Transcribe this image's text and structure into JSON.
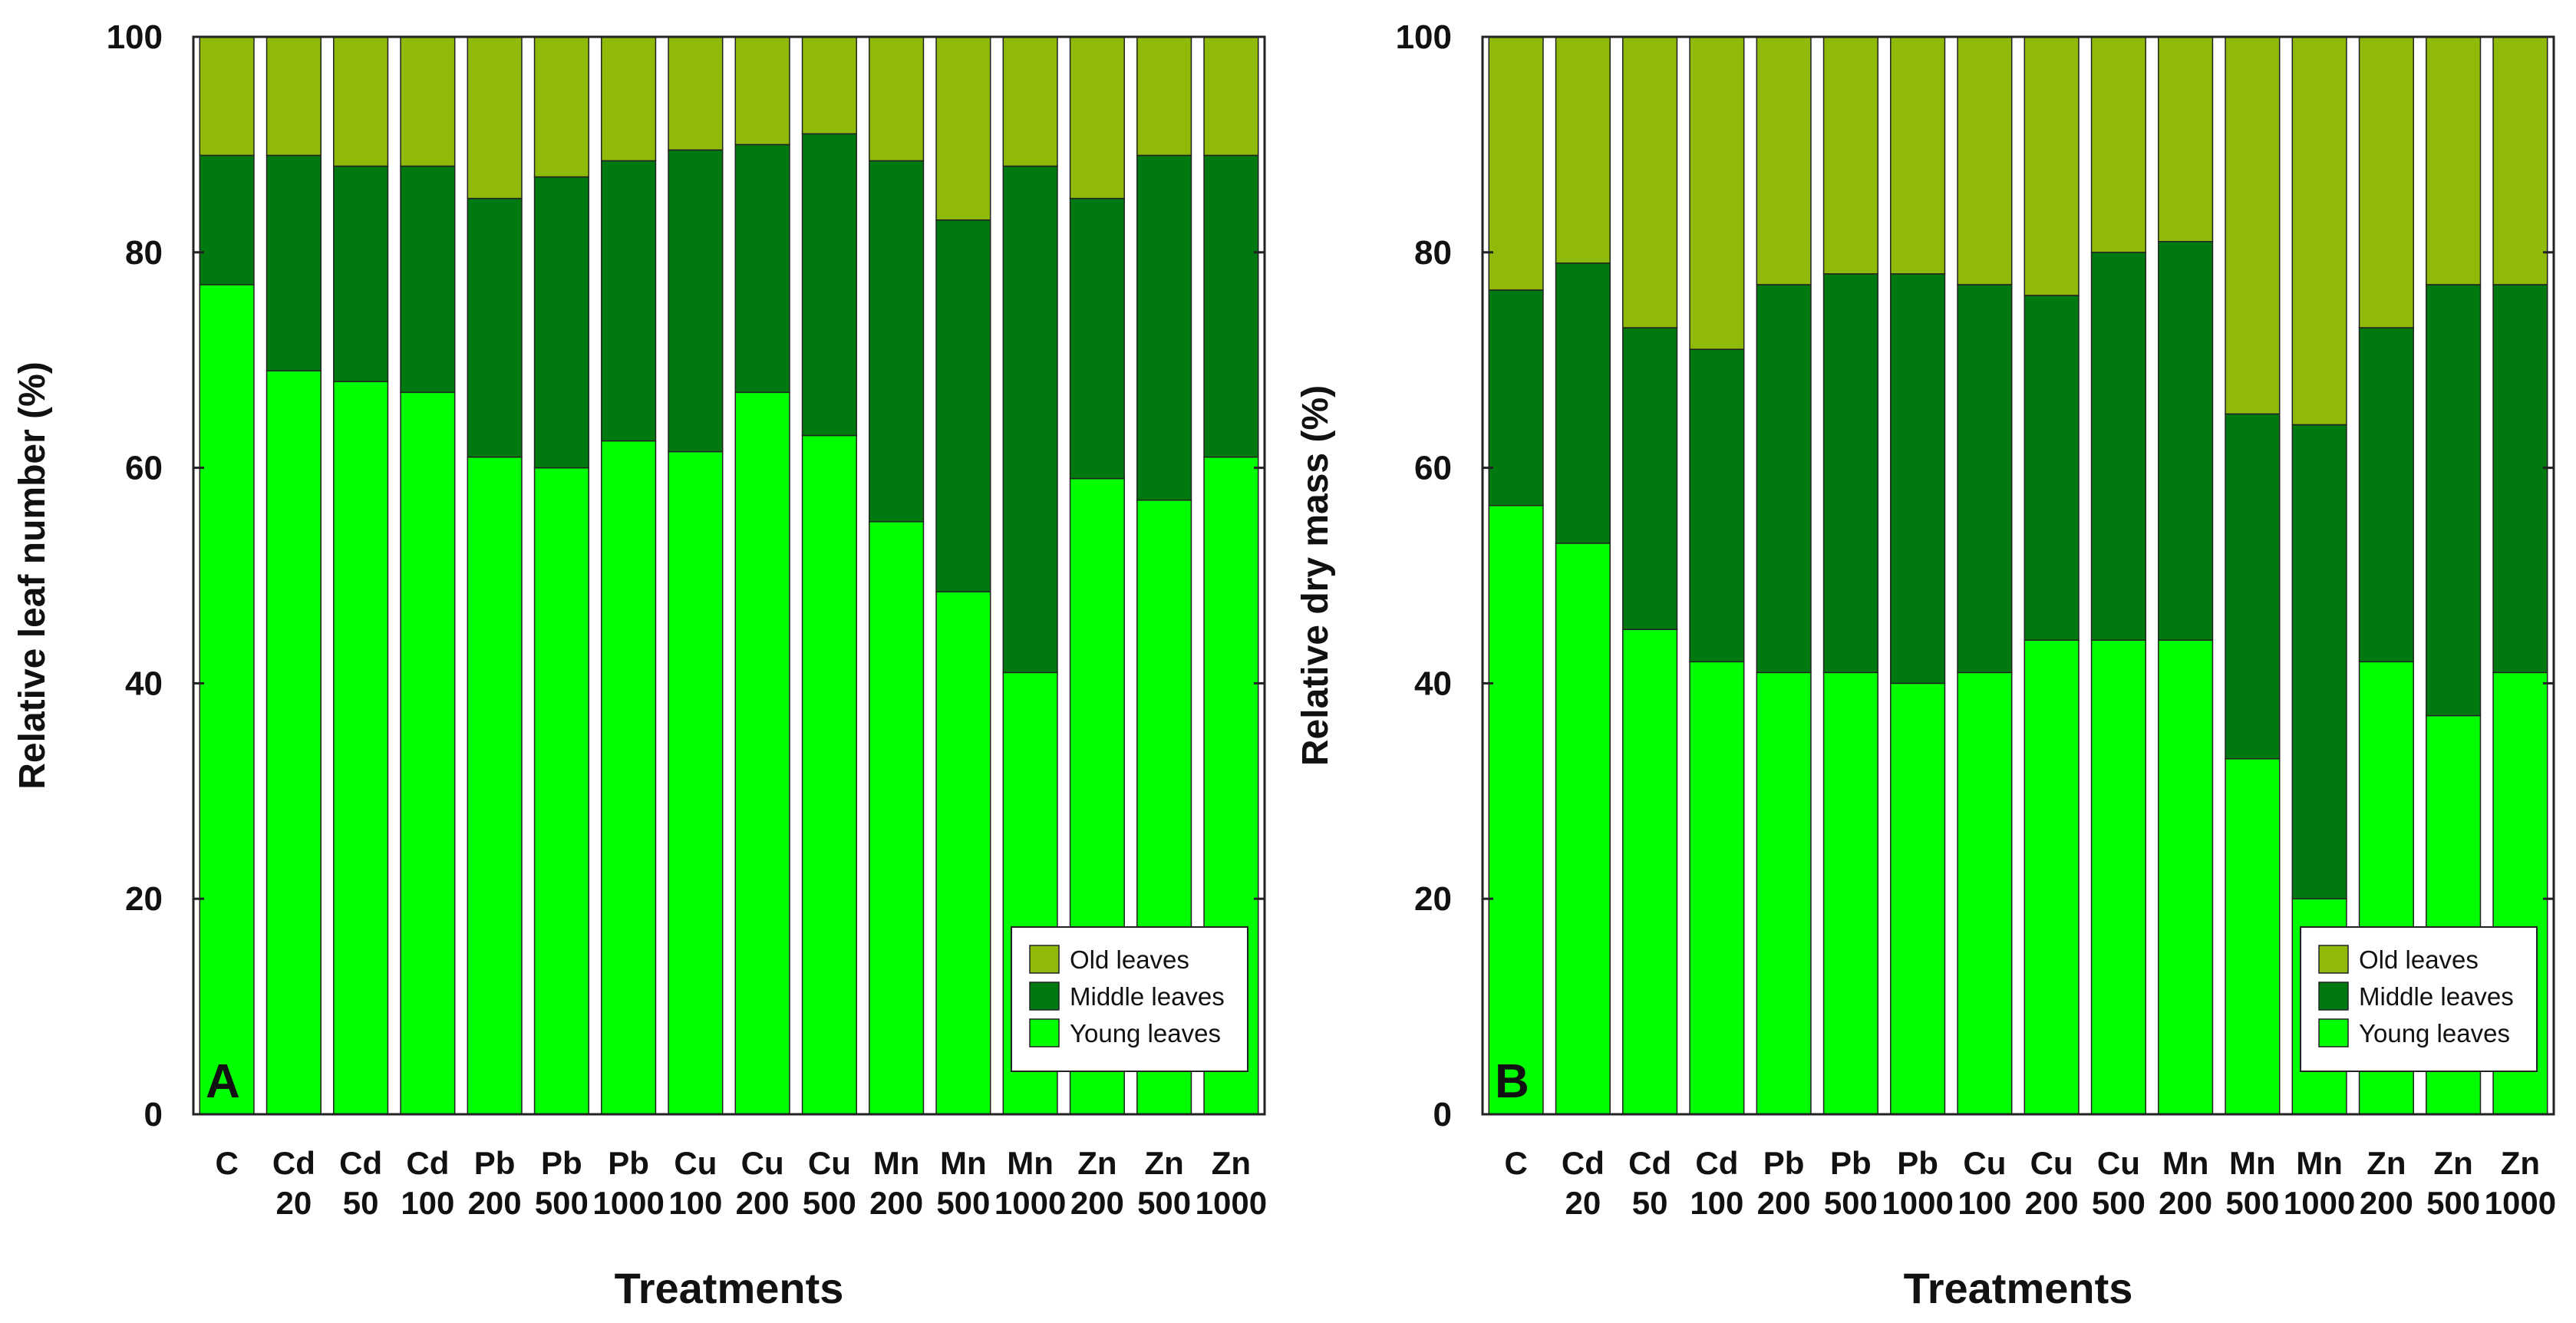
{
  "chart_data": [
    {
      "type": "bar",
      "stacked": true,
      "panel_label": "A",
      "title": "",
      "xlabel": "Treatments",
      "ylabel": "Relative leaf number (%)",
      "ylim": [
        0,
        100
      ],
      "yticks": [
        0,
        20,
        40,
        60,
        80,
        100
      ],
      "grid": false,
      "legend_position": "bottom-right",
      "categories": [
        [
          "C",
          ""
        ],
        [
          "Cd",
          "20"
        ],
        [
          "Cd",
          "50"
        ],
        [
          "Cd",
          "100"
        ],
        [
          "Pb",
          "200"
        ],
        [
          "Pb",
          "500"
        ],
        [
          "Pb",
          "1000"
        ],
        [
          "Cu",
          "100"
        ],
        [
          "Cu",
          "200"
        ],
        [
          "Cu",
          "500"
        ],
        [
          "Mn",
          "200"
        ],
        [
          "Mn",
          "500"
        ],
        [
          "Mn",
          "1000"
        ],
        [
          "Zn",
          "200"
        ],
        [
          "Zn",
          "500"
        ],
        [
          "Zn",
          "1000"
        ]
      ],
      "series": [
        {
          "name": "Young leaves",
          "color": "#00ff00",
          "values": [
            77,
            69,
            68,
            67,
            61,
            60,
            62.5,
            61.5,
            67,
            63,
            55,
            48.5,
            41,
            59,
            57,
            61
          ]
        },
        {
          "name": "Middle leaves",
          "color": "#007a10",
          "values": [
            12,
            20,
            20,
            21,
            24,
            27,
            26,
            28,
            23,
            28,
            33.5,
            34.5,
            47,
            26,
            32,
            28
          ]
        },
        {
          "name": "Old leaves",
          "color": "#8fba0a",
          "values": [
            11,
            11,
            12,
            12,
            15,
            13,
            11.5,
            10.5,
            10,
            9,
            11.5,
            17,
            12,
            15,
            11,
            11
          ]
        }
      ]
    },
    {
      "type": "bar",
      "stacked": true,
      "panel_label": "B",
      "title": "",
      "xlabel": "Treatments",
      "ylabel": "Relative dry mass (%)",
      "ylim": [
        0,
        100
      ],
      "yticks": [
        0,
        20,
        40,
        60,
        80,
        100
      ],
      "grid": false,
      "legend_position": "bottom-right",
      "categories": [
        [
          "C",
          ""
        ],
        [
          "Cd",
          "20"
        ],
        [
          "Cd",
          "50"
        ],
        [
          "Cd",
          "100"
        ],
        [
          "Pb",
          "200"
        ],
        [
          "Pb",
          "500"
        ],
        [
          "Pb",
          "1000"
        ],
        [
          "Cu",
          "100"
        ],
        [
          "Cu",
          "200"
        ],
        [
          "Cu",
          "500"
        ],
        [
          "Mn",
          "200"
        ],
        [
          "Mn",
          "500"
        ],
        [
          "Mn",
          "1000"
        ],
        [
          "Zn",
          "200"
        ],
        [
          "Zn",
          "500"
        ],
        [
          "Zn",
          "1000"
        ]
      ],
      "series": [
        {
          "name": "Young leaves",
          "color": "#00ff00",
          "values": [
            56.5,
            53,
            45,
            42,
            41,
            41,
            40,
            41,
            44,
            44,
            44,
            33,
            20,
            42,
            37,
            41
          ]
        },
        {
          "name": "Middle leaves",
          "color": "#007a10",
          "values": [
            20,
            26,
            28,
            29,
            36,
            37,
            38,
            36,
            32,
            36,
            37,
            32,
            44,
            31,
            40,
            36
          ]
        },
        {
          "name": "Old leaves",
          "color": "#8fba0a",
          "values": [
            23.5,
            21,
            27,
            29,
            23,
            22,
            22,
            23,
            24,
            20,
            19,
            35,
            36,
            27,
            23,
            23
          ]
        }
      ]
    }
  ],
  "legend": {
    "order": [
      "Old leaves",
      "Middle leaves",
      "Young leaves"
    ]
  }
}
